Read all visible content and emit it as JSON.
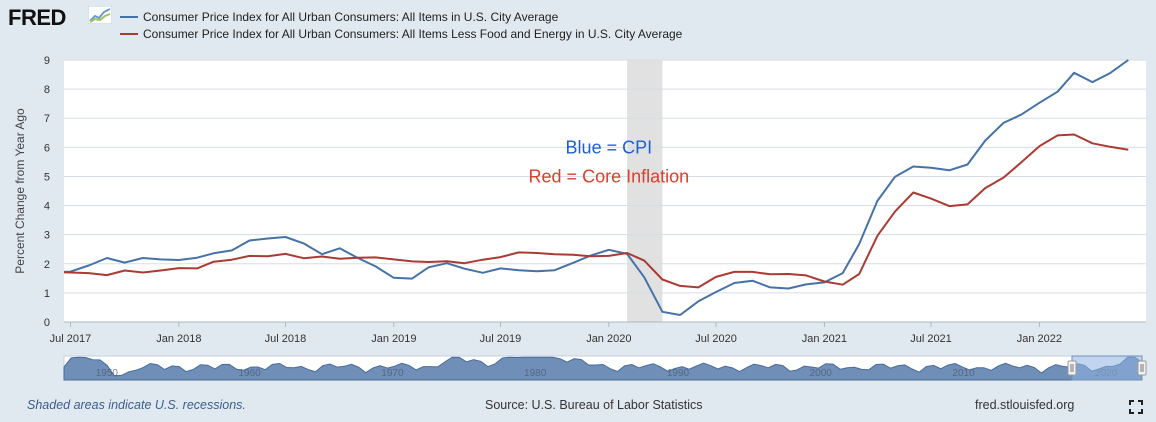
{
  "brand": {
    "logo_text": "FRED"
  },
  "chart_data": {
    "type": "line",
    "title": "",
    "xlabel": "",
    "ylabel": "Percent Change from Year Ago",
    "x_axis": "date",
    "xlim": [
      "2017-06-20",
      "2022-07-01"
    ],
    "ylim": [
      0,
      9
    ],
    "yticks": [
      0,
      1,
      2,
      3,
      4,
      5,
      6,
      7,
      8,
      9
    ],
    "xticks": [
      {
        "date": "2017-07-01",
        "label": "Jul 2017"
      },
      {
        "date": "2018-01-01",
        "label": "Jan 2018"
      },
      {
        "date": "2018-07-01",
        "label": "Jul 2018"
      },
      {
        "date": "2019-01-01",
        "label": "Jan 2019"
      },
      {
        "date": "2019-07-01",
        "label": "Jul 2019"
      },
      {
        "date": "2020-01-01",
        "label": "Jan 2020"
      },
      {
        "date": "2020-07-01",
        "label": "Jul 2020"
      },
      {
        "date": "2021-01-01",
        "label": "Jan 2021"
      },
      {
        "date": "2021-07-01",
        "label": "Jul 2021"
      },
      {
        "date": "2022-01-01",
        "label": "Jan 2022"
      }
    ],
    "grid": "horizontal",
    "legend_position": "top",
    "recession_shading": [
      [
        "2020-02-01",
        "2020-04-01"
      ]
    ],
    "series": [
      {
        "name": "Consumer Price Index for All Urban Consumers: All Items in U.S. City Average",
        "color": "#4572a7",
        "points": [
          [
            "2017-06-01",
            1.7
          ],
          [
            "2017-07-01",
            1.73
          ],
          [
            "2017-08-01",
            1.94
          ],
          [
            "2017-09-01",
            2.2
          ],
          [
            "2017-10-01",
            2.04
          ],
          [
            "2017-11-01",
            2.2
          ],
          [
            "2017-12-01",
            2.15
          ],
          [
            "2018-01-01",
            2.13
          ],
          [
            "2018-02-01",
            2.21
          ],
          [
            "2018-03-01",
            2.36
          ],
          [
            "2018-04-01",
            2.46
          ],
          [
            "2018-05-01",
            2.8
          ],
          [
            "2018-06-01",
            2.87
          ],
          [
            "2018-07-01",
            2.92
          ],
          [
            "2018-08-01",
            2.7
          ],
          [
            "2018-09-01",
            2.33
          ],
          [
            "2018-10-01",
            2.53
          ],
          [
            "2018-11-01",
            2.2
          ],
          [
            "2018-12-01",
            1.91
          ],
          [
            "2019-01-01",
            1.52
          ],
          [
            "2019-02-01",
            1.49
          ],
          [
            "2019-03-01",
            1.88
          ],
          [
            "2019-04-01",
            2.02
          ],
          [
            "2019-05-01",
            1.83
          ],
          [
            "2019-06-01",
            1.69
          ],
          [
            "2019-07-01",
            1.84
          ],
          [
            "2019-08-01",
            1.78
          ],
          [
            "2019-09-01",
            1.74
          ],
          [
            "2019-10-01",
            1.78
          ],
          [
            "2019-11-01",
            2.03
          ],
          [
            "2019-12-01",
            2.28
          ],
          [
            "2020-01-01",
            2.48
          ],
          [
            "2020-02-01",
            2.34
          ],
          [
            "2020-03-01",
            1.54
          ],
          [
            "2020-04-01",
            0.35
          ],
          [
            "2020-05-01",
            0.24
          ],
          [
            "2020-06-01",
            0.71
          ],
          [
            "2020-07-01",
            1.03
          ],
          [
            "2020-08-01",
            1.34
          ],
          [
            "2020-09-01",
            1.42
          ],
          [
            "2020-10-01",
            1.19
          ],
          [
            "2020-11-01",
            1.15
          ],
          [
            "2020-12-01",
            1.29
          ],
          [
            "2021-01-01",
            1.36
          ],
          [
            "2021-02-01",
            1.68
          ],
          [
            "2021-03-01",
            2.68
          ],
          [
            "2021-04-01",
            4.16
          ],
          [
            "2021-05-01",
            4.99
          ],
          [
            "2021-06-01",
            5.34
          ],
          [
            "2021-07-01",
            5.3
          ],
          [
            "2021-08-01",
            5.21
          ],
          [
            "2021-09-01",
            5.41
          ],
          [
            "2021-10-01",
            6.23
          ],
          [
            "2021-11-01",
            6.84
          ],
          [
            "2021-12-01",
            7.12
          ],
          [
            "2022-01-01",
            7.53
          ],
          [
            "2022-02-01",
            7.91
          ],
          [
            "2022-03-01",
            8.56
          ],
          [
            "2022-04-01",
            8.24
          ],
          [
            "2022-05-01",
            8.55
          ],
          [
            "2022-06-01",
            9.0
          ]
        ]
      },
      {
        "name": "Consumer Price Index for All Urban Consumers: All Items Less Food and Energy in U.S. City Average",
        "color": "#aa3b32",
        "points": [
          [
            "2017-06-01",
            1.71
          ],
          [
            "2017-07-01",
            1.7
          ],
          [
            "2017-08-01",
            1.68
          ],
          [
            "2017-09-01",
            1.61
          ],
          [
            "2017-10-01",
            1.77
          ],
          [
            "2017-11-01",
            1.7
          ],
          [
            "2017-12-01",
            1.77
          ],
          [
            "2018-01-01",
            1.85
          ],
          [
            "2018-02-01",
            1.84
          ],
          [
            "2018-03-01",
            2.07
          ],
          [
            "2018-04-01",
            2.14
          ],
          [
            "2018-05-01",
            2.27
          ],
          [
            "2018-06-01",
            2.26
          ],
          [
            "2018-07-01",
            2.34
          ],
          [
            "2018-08-01",
            2.19
          ],
          [
            "2018-09-01",
            2.25
          ],
          [
            "2018-10-01",
            2.17
          ],
          [
            "2018-11-01",
            2.21
          ],
          [
            "2018-12-01",
            2.22
          ],
          [
            "2019-01-01",
            2.15
          ],
          [
            "2019-02-01",
            2.08
          ],
          [
            "2019-03-01",
            2.06
          ],
          [
            "2019-04-01",
            2.09
          ],
          [
            "2019-05-01",
            2.02
          ],
          [
            "2019-06-01",
            2.14
          ],
          [
            "2019-07-01",
            2.23
          ],
          [
            "2019-08-01",
            2.39
          ],
          [
            "2019-09-01",
            2.37
          ],
          [
            "2019-10-01",
            2.33
          ],
          [
            "2019-11-01",
            2.31
          ],
          [
            "2019-12-01",
            2.26
          ],
          [
            "2020-01-01",
            2.27
          ],
          [
            "2020-02-01",
            2.37
          ],
          [
            "2020-03-01",
            2.11
          ],
          [
            "2020-04-01",
            1.46
          ],
          [
            "2020-05-01",
            1.24
          ],
          [
            "2020-06-01",
            1.19
          ],
          [
            "2020-07-01",
            1.55
          ],
          [
            "2020-08-01",
            1.72
          ],
          [
            "2020-09-01",
            1.72
          ],
          [
            "2020-10-01",
            1.64
          ],
          [
            "2020-11-01",
            1.65
          ],
          [
            "2020-12-01",
            1.6
          ],
          [
            "2021-01-01",
            1.39
          ],
          [
            "2021-02-01",
            1.28
          ],
          [
            "2021-03-01",
            1.65
          ],
          [
            "2021-04-01",
            2.96
          ],
          [
            "2021-05-01",
            3.8
          ],
          [
            "2021-06-01",
            4.45
          ],
          [
            "2021-07-01",
            4.24
          ],
          [
            "2021-08-01",
            3.98
          ],
          [
            "2021-09-01",
            4.04
          ],
          [
            "2021-10-01",
            4.6
          ],
          [
            "2021-11-01",
            4.96
          ],
          [
            "2021-12-01",
            5.48
          ],
          [
            "2022-01-01",
            6.04
          ],
          [
            "2022-02-01",
            6.41
          ],
          [
            "2022-03-01",
            6.44
          ],
          [
            "2022-04-01",
            6.14
          ],
          [
            "2022-05-01",
            6.02
          ],
          [
            "2022-06-01",
            5.92
          ]
        ]
      }
    ],
    "annotations": [
      {
        "text": "Blue = CPI",
        "color": "#1a5fd6",
        "date": "2020-01-01",
        "y": 6.0
      },
      {
        "text": "Red = Core Inflation",
        "color": "#d9402b",
        "date": "2020-01-01",
        "y": 5.0
      }
    ],
    "navigator": {
      "tick_labels": [
        {
          "year": 1950,
          "label": "1950"
        },
        {
          "year": 1960,
          "label": "1960"
        },
        {
          "year": 1970,
          "label": "1970"
        },
        {
          "year": 1980,
          "label": "1980"
        },
        {
          "year": 1990,
          "label": "1990"
        },
        {
          "year": 2000,
          "label": "2000"
        },
        {
          "year": 2010,
          "label": "2010"
        },
        {
          "year": 2020,
          "label": "2020"
        }
      ]
    }
  },
  "footer": {
    "recession_note": "Shaded areas indicate U.S. recessions.",
    "source": "Source: U.S. Bureau of Labor Statistics",
    "url": "fred.stlouisfed.org"
  },
  "icons": {
    "fullscreen": "fullscreen-icon",
    "logo_graph": "fred-graph-icon"
  }
}
